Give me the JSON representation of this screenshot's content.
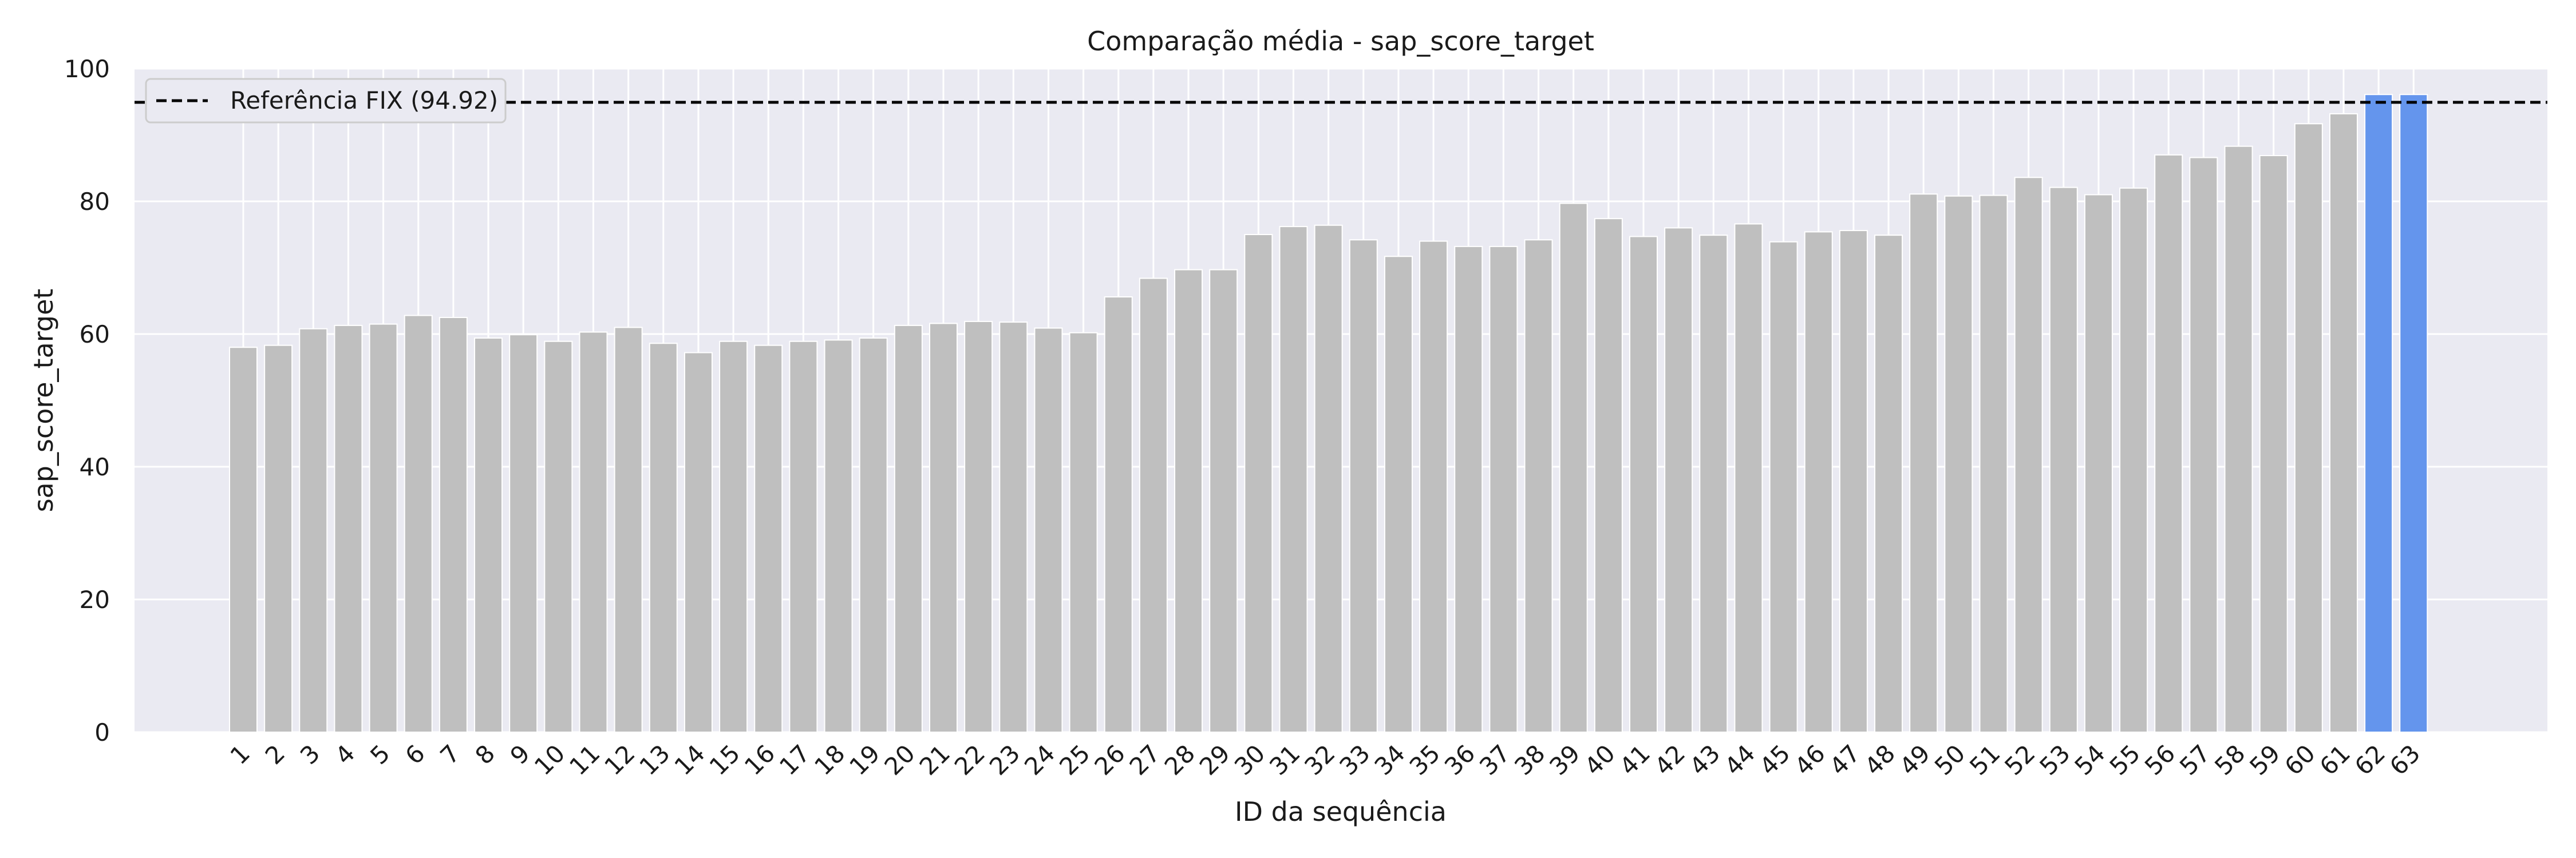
{
  "chart_data": {
    "type": "bar",
    "title": "Comparação média - sap_score_target",
    "xlabel": "ID da sequência",
    "ylabel": "sap_score_target",
    "ylim": [
      0,
      100
    ],
    "yticks": [
      0,
      20,
      40,
      60,
      80,
      100
    ],
    "grid": true,
    "legend": {
      "placement": "top-left",
      "entries": [
        "Referência FIX (94.92)"
      ]
    },
    "reference_line": {
      "label": "Referência FIX (94.92)",
      "value": 94.92,
      "color": "#000000",
      "style": "dashed"
    },
    "categories": [
      "1",
      "2",
      "3",
      "4",
      "5",
      "6",
      "7",
      "8",
      "9",
      "10",
      "11",
      "12",
      "13",
      "14",
      "15",
      "16",
      "17",
      "18",
      "19",
      "20",
      "21",
      "22",
      "23",
      "24",
      "25",
      "26",
      "27",
      "28",
      "29",
      "30",
      "31",
      "32",
      "33",
      "34",
      "35",
      "36",
      "37",
      "38",
      "39",
      "40",
      "41",
      "42",
      "43",
      "44",
      "45",
      "46",
      "47",
      "48",
      "49",
      "50",
      "51",
      "52",
      "53",
      "54",
      "55",
      "56",
      "57",
      "58",
      "59",
      "60",
      "61",
      "62",
      "63"
    ],
    "values": [
      58.0,
      58.3,
      60.8,
      61.3,
      61.5,
      62.8,
      62.5,
      59.4,
      59.9,
      58.9,
      60.3,
      61.0,
      58.6,
      57.2,
      58.9,
      58.3,
      58.9,
      59.1,
      59.4,
      61.3,
      61.6,
      61.9,
      61.8,
      60.9,
      60.2,
      65.6,
      68.4,
      69.7,
      69.7,
      75.0,
      76.2,
      76.4,
      74.2,
      71.7,
      74.0,
      73.2,
      73.2,
      74.2,
      79.7,
      77.4,
      74.7,
      76.0,
      74.9,
      76.6,
      73.9,
      75.4,
      75.6,
      74.9,
      81.1,
      80.8,
      80.9,
      83.6,
      82.1,
      81.0,
      82.0,
      87.0,
      86.6,
      88.3,
      86.9,
      91.7,
      93.2,
      96.1,
      96.1
    ],
    "colors": {
      "bar": "#bfbfbf",
      "highlight": "#6495ed",
      "plot_background": "#eaeaf2",
      "grid": "#ffffff"
    },
    "highlighted_categories": [
      "62",
      "63"
    ]
  }
}
